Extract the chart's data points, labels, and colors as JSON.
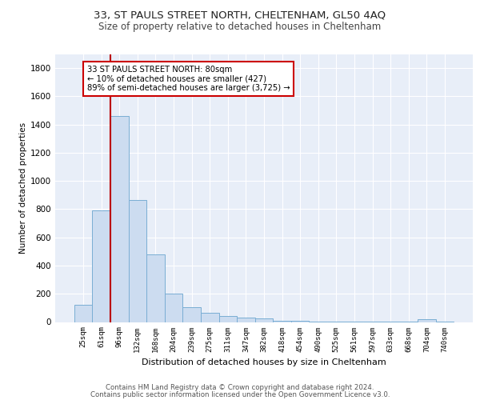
{
  "title_line1": "33, ST PAULS STREET NORTH, CHELTENHAM, GL50 4AQ",
  "title_line2": "Size of property relative to detached houses in Cheltenham",
  "xlabel": "Distribution of detached houses by size in Cheltenham",
  "ylabel": "Number of detached properties",
  "categories": [
    "25sqm",
    "61sqm",
    "96sqm",
    "132sqm",
    "168sqm",
    "204sqm",
    "239sqm",
    "275sqm",
    "311sqm",
    "347sqm",
    "382sqm",
    "418sqm",
    "454sqm",
    "490sqm",
    "525sqm",
    "561sqm",
    "597sqm",
    "633sqm",
    "668sqm",
    "704sqm",
    "740sqm"
  ],
  "values": [
    120,
    790,
    1460,
    865,
    480,
    200,
    105,
    65,
    42,
    30,
    26,
    10,
    10,
    5,
    5,
    5,
    5,
    5,
    3,
    18,
    3
  ],
  "bar_color": "#ccdcf0",
  "bar_edge_color": "#7aaed4",
  "vline_x": 1.5,
  "vline_color": "#bb0000",
  "annotation_text": "33 ST PAULS STREET NORTH: 80sqm\n← 10% of detached houses are smaller (427)\n89% of semi-detached houses are larger (3,725) →",
  "annotation_box_color": "#ffffff",
  "annotation_box_edge": "#cc0000",
  "ylim": [
    0,
    1900
  ],
  "yticks": [
    0,
    200,
    400,
    600,
    800,
    1000,
    1200,
    1400,
    1600,
    1800
  ],
  "background_color": "#e8eef8",
  "footer_line1": "Contains HM Land Registry data © Crown copyright and database right 2024.",
  "footer_line2": "Contains public sector information licensed under the Open Government Licence v3.0."
}
